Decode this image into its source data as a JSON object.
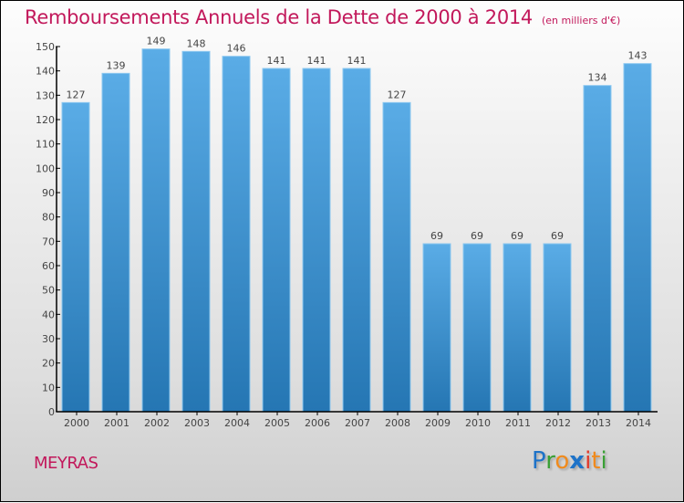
{
  "header": {
    "title": "Remboursements Annuels de la Dette de 2000 à 2014",
    "subtitle": "(en milliers d'€)"
  },
  "footer": {
    "city": "MEYRAS",
    "logo": {
      "letters": [
        "P",
        "r",
        "o",
        "x",
        "i",
        "t",
        "i"
      ],
      "colors": [
        "#1e73c8",
        "#3aa035",
        "#f08a1c",
        "#1e73c8",
        "#e23a2a",
        "#f08a1c",
        "#3aa035"
      ]
    }
  },
  "colors": {
    "title": "#c2185b",
    "bar_top": "#5aace6",
    "bar_bottom": "#2576b3",
    "bar_edge": "#8cc8f0"
  },
  "chart_data": {
    "type": "bar",
    "title": "Remboursements Annuels de la Dette de 2000 à 2014",
    "subtitle": "(en milliers d'€)",
    "xlabel": "",
    "ylabel": "",
    "categories": [
      "2000",
      "2001",
      "2002",
      "2003",
      "2004",
      "2005",
      "2006",
      "2007",
      "2008",
      "2009",
      "2010",
      "2011",
      "2012",
      "2013",
      "2014"
    ],
    "values": [
      127,
      139,
      149,
      148,
      146,
      141,
      141,
      141,
      127,
      69,
      69,
      69,
      69,
      134,
      143
    ],
    "ylim": [
      0,
      150
    ],
    "yticks": [
      0,
      10,
      20,
      30,
      40,
      50,
      60,
      70,
      80,
      90,
      100,
      110,
      120,
      130,
      140,
      150
    ],
    "grid": false,
    "legend": "none",
    "data_labels": true
  }
}
